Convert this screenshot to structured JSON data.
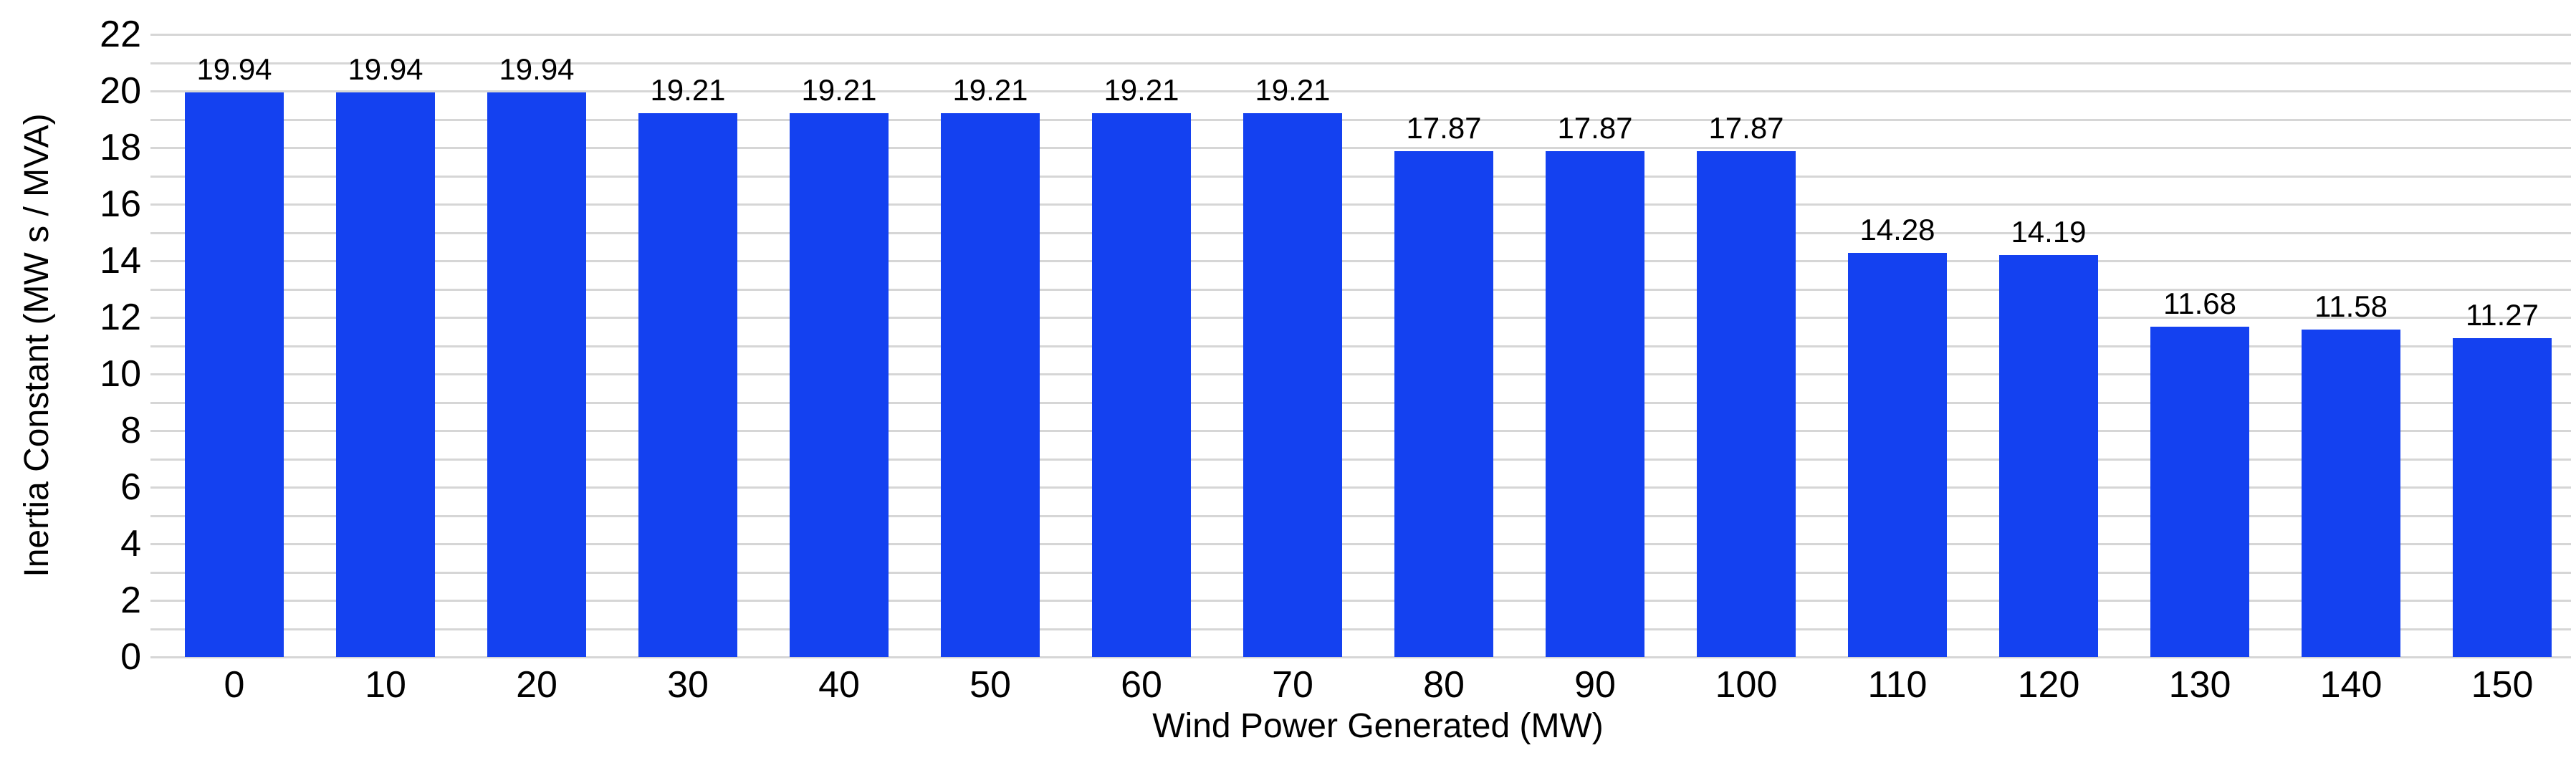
{
  "figure": {
    "background_color": "#ffffff"
  },
  "chart_data": {
    "type": "bar",
    "title": "",
    "xlabel": "Wind Power Generated (MW)",
    "ylabel": "Inertia Constant (MW s / MVA)",
    "categories": [
      "0",
      "10",
      "20",
      "30",
      "40",
      "50",
      "60",
      "70",
      "80",
      "90",
      "100",
      "110",
      "120",
      "130",
      "140",
      "150"
    ],
    "values": [
      19.94,
      19.94,
      19.94,
      19.21,
      19.21,
      19.21,
      19.21,
      19.21,
      17.87,
      17.87,
      17.87,
      14.28,
      14.19,
      11.68,
      11.58,
      11.27
    ],
    "value_labels": [
      "19.94",
      "19.94",
      "19.94",
      "19.21",
      "19.21",
      "19.21",
      "19.21",
      "19.21",
      "17.87",
      "17.87",
      "17.87",
      "14.28",
      "14.19",
      "11.68",
      "11.58",
      "11.27"
    ],
    "ylim": [
      0,
      22
    ],
    "ytick_labels": [
      "0",
      "2",
      "4",
      "6",
      "8",
      "10",
      "12",
      "14",
      "16",
      "18",
      "20",
      "22"
    ],
    "ytick_interval": 2,
    "gridline_interval": 1,
    "grid": "on",
    "legend": "none",
    "bar_color": "#1441f0",
    "grid_color": "#d6d6d6",
    "text_color": "#000000"
  }
}
